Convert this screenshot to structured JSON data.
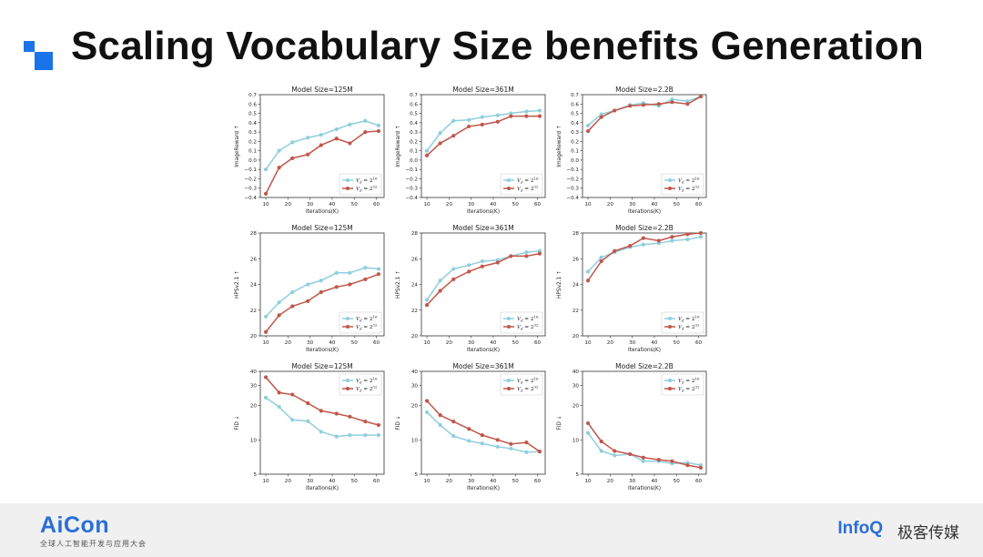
{
  "slide": {
    "title": "Scaling Vocabulary Size benefits Generation",
    "accent": "#1a73e8"
  },
  "footer": {
    "left_logo": "AiCon",
    "left_subtitle": "全球人工智能开发与应用大会",
    "right_logo": "InfoQ",
    "right_subtitle": "极客传媒"
  },
  "colors": {
    "series_a": "#8fcfdc",
    "series_b": "#c0564a"
  },
  "chart_data": [
    {
      "type": "line",
      "title": "Model Size=125M",
      "ylabel": "ImageReward ↑",
      "xlabel": "Iterations(K)",
      "x": [
        10,
        16,
        22,
        29,
        35,
        42,
        48,
        55,
        61
      ],
      "xticks": [
        10,
        20,
        30,
        40,
        50,
        60
      ],
      "ylim": [
        -0.4,
        0.7
      ],
      "yticks": [
        -0.4,
        -0.3,
        -0.2,
        -0.1,
        0,
        0.1,
        0.2,
        0.3,
        0.4,
        0.5,
        0.6,
        0.7
      ],
      "legend": "bottom-right",
      "series": [
        {
          "name": "V_d = 2^16",
          "values": [
            -0.1,
            0.1,
            0.19,
            0.24,
            0.27,
            0.33,
            0.38,
            0.42,
            0.37
          ]
        },
        {
          "name": "V_d = 2^32",
          "values": [
            -0.36,
            -0.08,
            0.02,
            0.06,
            0.16,
            0.23,
            0.18,
            0.3,
            0.31
          ]
        }
      ]
    },
    {
      "type": "line",
      "title": "Model Size=361M",
      "ylabel": "ImageReward ↑",
      "xlabel": "Iterations(K)",
      "x": [
        10,
        16,
        22,
        29,
        35,
        42,
        48,
        55,
        61
      ],
      "xticks": [
        10,
        20,
        30,
        40,
        50,
        60
      ],
      "ylim": [
        -0.4,
        0.7
      ],
      "yticks": [
        -0.4,
        -0.3,
        -0.2,
        -0.1,
        0,
        0.1,
        0.2,
        0.3,
        0.4,
        0.5,
        0.6,
        0.7
      ],
      "legend": "bottom-right",
      "series": [
        {
          "name": "V_d = 2^16",
          "values": [
            0.1,
            0.29,
            0.42,
            0.43,
            0.46,
            0.48,
            0.5,
            0.52,
            0.53
          ]
        },
        {
          "name": "V_d = 2^32",
          "values": [
            0.05,
            0.18,
            0.26,
            0.36,
            0.38,
            0.41,
            0.47,
            0.47,
            0.47
          ]
        }
      ]
    },
    {
      "type": "line",
      "title": "Model Size=2.2B",
      "ylabel": "ImageReward ↑",
      "xlabel": "Iterations(K)",
      "x": [
        10,
        16,
        22,
        29,
        35,
        42,
        48,
        55,
        61
      ],
      "xticks": [
        10,
        20,
        30,
        40,
        50,
        60
      ],
      "ylim": [
        -0.4,
        0.7
      ],
      "yticks": [
        -0.4,
        -0.3,
        -0.2,
        -0.1,
        0,
        0.1,
        0.2,
        0.3,
        0.4,
        0.5,
        0.6,
        0.7
      ],
      "legend": "bottom-right",
      "series": [
        {
          "name": "V_d = 2^16",
          "values": [
            0.37,
            0.49,
            0.53,
            0.59,
            0.61,
            0.58,
            0.65,
            0.63,
            0.68
          ]
        },
        {
          "name": "V_d = 2^32",
          "values": [
            0.31,
            0.46,
            0.53,
            0.58,
            0.59,
            0.6,
            0.62,
            0.6,
            0.68
          ]
        }
      ]
    },
    {
      "type": "line",
      "title": "Model Size=125M",
      "ylabel": "HPSv2.1 ↑",
      "xlabel": "Iterations(K)",
      "x": [
        10,
        16,
        22,
        29,
        35,
        42,
        48,
        55,
        61
      ],
      "xticks": [
        10,
        20,
        30,
        40,
        50,
        60
      ],
      "ylim": [
        20,
        28
      ],
      "yticks": [
        20,
        22,
        24,
        26,
        28
      ],
      "legend": "bottom-right",
      "series": [
        {
          "name": "V_d = 2^16",
          "values": [
            21.5,
            22.6,
            23.4,
            24.0,
            24.3,
            24.9,
            24.9,
            25.3,
            25.2
          ]
        },
        {
          "name": "V_d = 2^32",
          "values": [
            20.3,
            21.6,
            22.3,
            22.7,
            23.4,
            23.8,
            24.0,
            24.4,
            24.8
          ]
        }
      ]
    },
    {
      "type": "line",
      "title": "Model Size=361M",
      "ylabel": "HPSv2.1 ↑",
      "xlabel": "Iterations(K)",
      "x": [
        10,
        16,
        22,
        29,
        35,
        42,
        48,
        55,
        61
      ],
      "xticks": [
        10,
        20,
        30,
        40,
        50,
        60
      ],
      "ylim": [
        20,
        28
      ],
      "yticks": [
        20,
        22,
        24,
        26,
        28
      ],
      "legend": "bottom-right",
      "series": [
        {
          "name": "V_d = 2^16",
          "values": [
            22.8,
            24.3,
            25.2,
            25.5,
            25.8,
            25.9,
            26.2,
            26.5,
            26.6
          ]
        },
        {
          "name": "V_d = 2^32",
          "values": [
            22.4,
            23.5,
            24.4,
            25.0,
            25.4,
            25.7,
            26.2,
            26.2,
            26.4
          ]
        }
      ]
    },
    {
      "type": "line",
      "title": "Model Size=2.2B",
      "ylabel": "HPSv2.1 ↑",
      "xlabel": "Iterations(K)",
      "x": [
        10,
        16,
        22,
        29,
        35,
        42,
        48,
        55,
        61
      ],
      "xticks": [
        10,
        20,
        30,
        40,
        50,
        60
      ],
      "ylim": [
        20,
        28
      ],
      "yticks": [
        20,
        22,
        24,
        26,
        28
      ],
      "legend": "bottom-right",
      "series": [
        {
          "name": "V_d = 2^16",
          "values": [
            25.0,
            26.1,
            26.5,
            26.9,
            27.1,
            27.2,
            27.4,
            27.5,
            27.7
          ]
        },
        {
          "name": "V_d = 2^32",
          "values": [
            24.3,
            25.8,
            26.6,
            27.0,
            27.6,
            27.4,
            27.7,
            27.9,
            28.0
          ]
        }
      ]
    },
    {
      "type": "line",
      "title": "Model Size=125M",
      "ylabel": "FID ↓",
      "xlabel": "Iterations(K)",
      "yscale": "log",
      "x": [
        10,
        16,
        22,
        29,
        35,
        42,
        48,
        55,
        61
      ],
      "xticks": [
        10,
        20,
        30,
        40,
        50,
        60
      ],
      "ylim": [
        5,
        40
      ],
      "yticks": [
        5,
        10,
        20,
        30,
        40
      ],
      "legend": "top-right",
      "series": [
        {
          "name": "V_d = 2^16",
          "values": [
            23.5,
            19.5,
            15.0,
            14.6,
            11.8,
            10.7,
            11.0,
            11.0,
            11.0
          ]
        },
        {
          "name": "V_d = 2^32",
          "values": [
            35.5,
            26.0,
            25.0,
            21.0,
            18.0,
            17.0,
            16.0,
            14.5,
            13.5
          ]
        }
      ]
    },
    {
      "type": "line",
      "title": "Model Size=361M",
      "ylabel": "FID ↓",
      "xlabel": "Iterations(K)",
      "yscale": "log",
      "x": [
        10,
        16,
        22,
        29,
        35,
        42,
        48,
        55,
        61
      ],
      "xticks": [
        10,
        20,
        30,
        40,
        50,
        60
      ],
      "ylim": [
        5,
        40
      ],
      "yticks": [
        5,
        10,
        20,
        30,
        40
      ],
      "legend": "top-right",
      "series": [
        {
          "name": "V_d = 2^16",
          "values": [
            17.5,
            13.5,
            10.8,
            9.8,
            9.3,
            8.7,
            8.4,
            7.8,
            7.9
          ]
        },
        {
          "name": "V_d = 2^32",
          "values": [
            22.0,
            16.5,
            14.5,
            12.5,
            11.0,
            10.0,
            9.2,
            9.5,
            7.9
          ]
        }
      ]
    },
    {
      "type": "line",
      "title": "Model Size=2.2B",
      "ylabel": "FID ↓",
      "xlabel": "Iterations(K)",
      "yscale": "log",
      "x": [
        10,
        16,
        22,
        29,
        35,
        42,
        48,
        55,
        61
      ],
      "xticks": [
        10,
        20,
        30,
        40,
        50,
        60
      ],
      "ylim": [
        5,
        40
      ],
      "yticks": [
        5,
        10,
        20,
        30,
        40
      ],
      "legend": "top-right",
      "series": [
        {
          "name": "V_d = 2^16",
          "values": [
            11.5,
            8.0,
            7.3,
            7.5,
            6.5,
            6.5,
            6.2,
            6.3,
            6.0
          ]
        },
        {
          "name": "V_d = 2^32",
          "values": [
            14.0,
            9.7,
            8.0,
            7.5,
            7.0,
            6.7,
            6.5,
            6.0,
            5.7
          ]
        }
      ]
    }
  ]
}
